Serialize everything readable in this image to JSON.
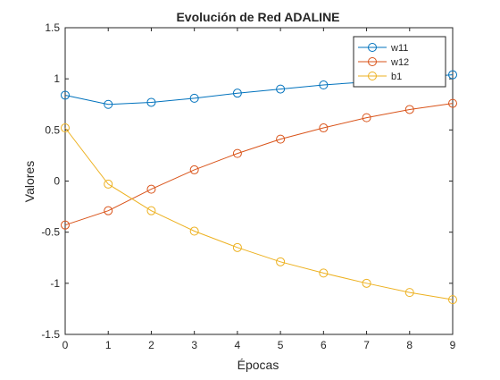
{
  "chart_data": {
    "type": "line",
    "title": "Evolución de Red ADALINE",
    "xlabel": "Épocas",
    "ylabel": "Valores",
    "xlim": [
      0,
      9
    ],
    "ylim": [
      -1.5,
      1.5
    ],
    "xticks": [
      0,
      1,
      2,
      3,
      4,
      5,
      6,
      7,
      8,
      9
    ],
    "xtick_labels": [
      "0",
      "1",
      "2",
      "3",
      "4",
      "5",
      "6",
      "7",
      "8",
      "9"
    ],
    "yticks": [
      -1.5,
      -1,
      -0.5,
      0,
      0.5,
      1,
      1.5
    ],
    "ytick_labels": [
      "-1.5",
      "-1",
      "-0.5",
      "0",
      "0.5",
      "1",
      "1.5"
    ],
    "grid": false,
    "legend_location": "top-right",
    "marker": "circle",
    "x": [
      0,
      1,
      2,
      3,
      4,
      5,
      6,
      7,
      8,
      9
    ],
    "series": [
      {
        "name": "w11",
        "color": "#0072BD",
        "values": [
          0.84,
          0.75,
          0.77,
          0.81,
          0.86,
          0.9,
          0.94,
          0.97,
          1.01,
          1.04
        ]
      },
      {
        "name": "w12",
        "color": "#D95319",
        "values": [
          -0.43,
          -0.29,
          -0.08,
          0.11,
          0.27,
          0.41,
          0.52,
          0.62,
          0.7,
          0.76
        ]
      },
      {
        "name": "b1",
        "color": "#EDB120",
        "values": [
          0.52,
          -0.03,
          -0.29,
          -0.49,
          -0.65,
          -0.79,
          -0.9,
          -1.0,
          -1.09,
          -1.16
        ]
      }
    ]
  }
}
